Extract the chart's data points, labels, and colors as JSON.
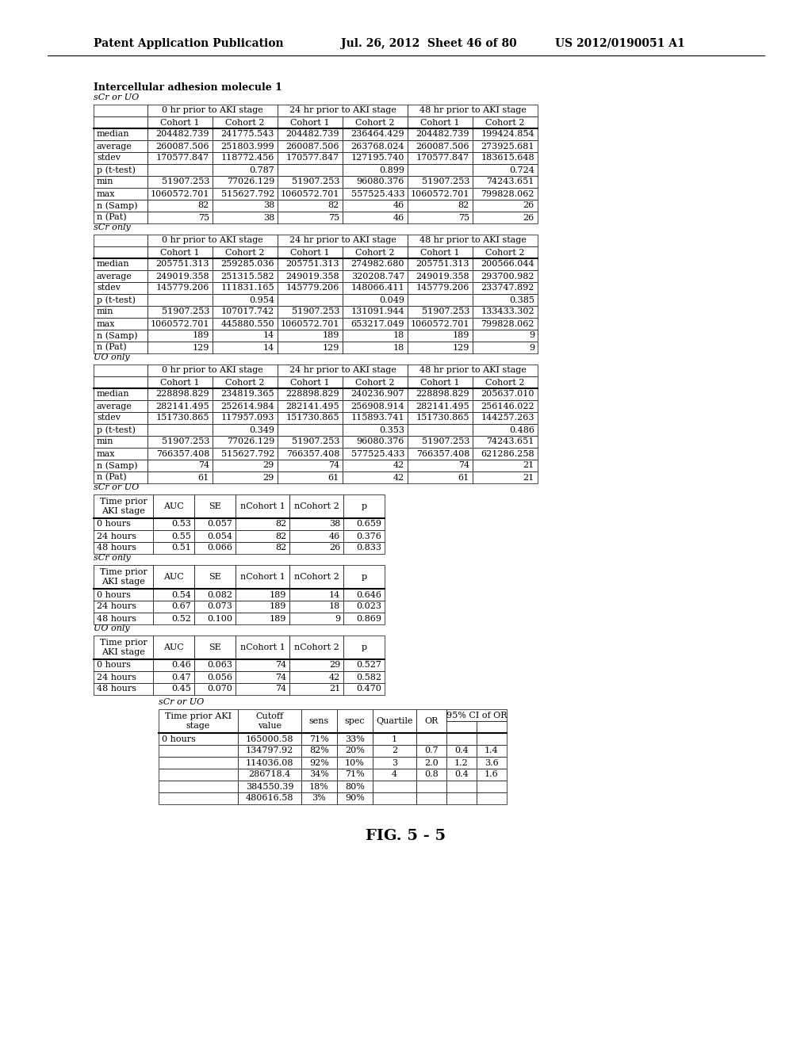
{
  "page_header_left": "Patent Application Publication",
  "page_header_mid": "Jul. 26, 2012  Sheet 46 of 80",
  "page_header_right": "US 2012/0190051 A1",
  "section_title": "Intercellular adhesion molecule 1",
  "figure_label": "FIG. 5 - 5",
  "table_header_groups": [
    "0 hr prior to AKI stage",
    "24 hr prior to AKI stage",
    "48 hr prior to AKI stage"
  ],
  "table_subheaders": [
    "Cohort 1",
    "Cohort 2",
    "Cohort 1",
    "Cohort 2",
    "Cohort 1",
    "Cohort 2"
  ],
  "tables_main": [
    {
      "label": "sCr or UO",
      "rows": [
        [
          "median",
          "204482.739",
          "241775.543",
          "204482.739",
          "236464.429",
          "204482.739",
          "199424.854"
        ],
        [
          "average",
          "260087.506",
          "251803.999",
          "260087.506",
          "263768.024",
          "260087.506",
          "273925.681"
        ],
        [
          "stdev",
          "170577.847",
          "118772.456",
          "170577.847",
          "127195.740",
          "170577.847",
          "183615.648"
        ],
        [
          "p (t-test)",
          "",
          "0.787",
          "",
          "0.899",
          "",
          "0.724"
        ],
        [
          "min",
          "51907.253",
          "77026.129",
          "51907.253",
          "96080.376",
          "51907.253",
          "74243.651"
        ],
        [
          "max",
          "1060572.701",
          "515627.792",
          "1060572.701",
          "557525.433",
          "1060572.701",
          "799828.062"
        ],
        [
          "n (Samp)",
          "82",
          "38",
          "82",
          "46",
          "82",
          "26"
        ],
        [
          "n (Pat)",
          "75",
          "38",
          "75",
          "46",
          "75",
          "26"
        ]
      ]
    },
    {
      "label": "sCr only",
      "rows": [
        [
          "median",
          "205751.313",
          "259285.036",
          "205751.313",
          "274982.680",
          "205751.313",
          "200566.044"
        ],
        [
          "average",
          "249019.358",
          "251315.582",
          "249019.358",
          "320208.747",
          "249019.358",
          "293700.982"
        ],
        [
          "stdev",
          "145779.206",
          "111831.165",
          "145779.206",
          "148066.411",
          "145779.206",
          "233747.892"
        ],
        [
          "p (t-test)",
          "",
          "0.954",
          "",
          "0.049",
          "",
          "0.385"
        ],
        [
          "min",
          "51907.253",
          "107017.742",
          "51907.253",
          "131091.944",
          "51907.253",
          "133433.302"
        ],
        [
          "max",
          "1060572.701",
          "445880.550",
          "1060572.701",
          "653217.049",
          "1060572.701",
          "799828.062"
        ],
        [
          "n (Samp)",
          "189",
          "14",
          "189",
          "18",
          "189",
          "9"
        ],
        [
          "n (Pat)",
          "129",
          "14",
          "129",
          "18",
          "129",
          "9"
        ]
      ]
    },
    {
      "label": "UO only",
      "rows": [
        [
          "median",
          "228898.829",
          "234819.365",
          "228898.829",
          "240236.907",
          "228898.829",
          "205637.010"
        ],
        [
          "average",
          "282141.495",
          "252614.984",
          "282141.495",
          "256908.914",
          "282141.495",
          "256146.022"
        ],
        [
          "stdev",
          "151730.865",
          "117957.093",
          "151730.865",
          "115893.741",
          "151730.865",
          "144257.263"
        ],
        [
          "p (t-test)",
          "",
          "0.349",
          "",
          "0.353",
          "",
          "0.486"
        ],
        [
          "min",
          "51907.253",
          "77026.129",
          "51907.253",
          "96080.376",
          "51907.253",
          "74243.651"
        ],
        [
          "max",
          "766357.408",
          "515627.792",
          "766357.408",
          "577525.433",
          "766357.408",
          "621286.258"
        ],
        [
          "n (Samp)",
          "74",
          "29",
          "74",
          "42",
          "74",
          "21"
        ],
        [
          "n (Pat)",
          "61",
          "29",
          "61",
          "42",
          "61",
          "21"
        ]
      ]
    }
  ],
  "tables_auc": [
    {
      "label": "sCr or UO",
      "header": [
        "Time prior\nAKI stage",
        "AUC",
        "SE",
        "nCohort 1",
        "nCohort 2",
        "p"
      ],
      "rows": [
        [
          "0 hours",
          "0.53",
          "0.057",
          "82",
          "38",
          "0.659"
        ],
        [
          "24 hours",
          "0.55",
          "0.054",
          "82",
          "46",
          "0.376"
        ],
        [
          "48 hours",
          "0.51",
          "0.066",
          "82",
          "26",
          "0.833"
        ]
      ]
    },
    {
      "label": "sCr only",
      "header": [
        "Time prior\nAKI stage",
        "AUC",
        "SE",
        "nCohort 1",
        "nCohort 2",
        "p"
      ],
      "rows": [
        [
          "0 hours",
          "0.54",
          "0.082",
          "189",
          "14",
          "0.646"
        ],
        [
          "24 hours",
          "0.67",
          "0.073",
          "189",
          "18",
          "0.023"
        ],
        [
          "48 hours",
          "0.52",
          "0.100",
          "189",
          "9",
          "0.869"
        ]
      ]
    },
    {
      "label": "UO only",
      "header": [
        "Time prior\nAKI stage",
        "AUC",
        "SE",
        "nCohort 1",
        "nCohort 2",
        "p"
      ],
      "rows": [
        [
          "0 hours",
          "0.46",
          "0.063",
          "74",
          "29",
          "0.527"
        ],
        [
          "24 hours",
          "0.47",
          "0.056",
          "74",
          "42",
          "0.582"
        ],
        [
          "48 hours",
          "0.45",
          "0.070",
          "74",
          "21",
          "0.470"
        ]
      ]
    }
  ],
  "table_cutoff": {
    "label": "sCr or UO",
    "header": [
      "Time prior AKI\nstage",
      "Cutoff\nvalue",
      "sens",
      "spec",
      "Quartile",
      "OR",
      "95% CI of OR"
    ],
    "rows": [
      [
        "0 hours",
        "165000.58",
        "71%",
        "33%",
        "1",
        "",
        "",
        ""
      ],
      [
        "",
        "134797.92",
        "82%",
        "20%",
        "2",
        "0.7",
        "0.4",
        "1.4"
      ],
      [
        "",
        "114036.08",
        "92%",
        "10%",
        "3",
        "2.0",
        "1.2",
        "3.6"
      ],
      [
        "",
        "286718.4",
        "34%",
        "71%",
        "4",
        "0.8",
        "0.4",
        "1.6"
      ],
      [
        "",
        "384550.39",
        "18%",
        "80%",
        "",
        "",
        "",
        ""
      ],
      [
        "",
        "480616.58",
        "3%",
        "90%",
        "",
        "",
        "",
        ""
      ]
    ]
  }
}
